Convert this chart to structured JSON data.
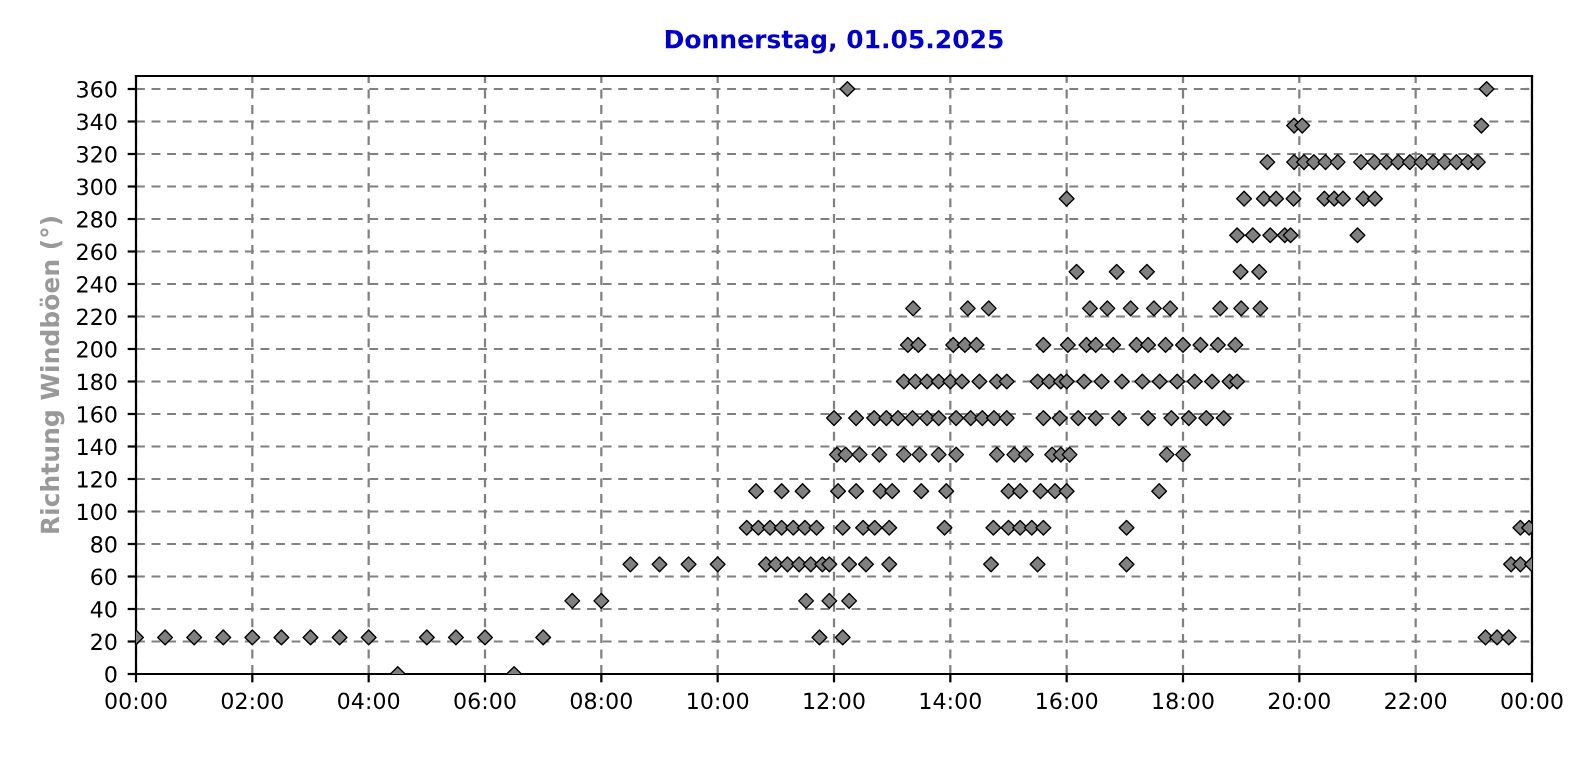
{
  "chart_data": {
    "type": "scatter",
    "title": "Donnerstag, 01.05.2025",
    "ylabel": "Richtung Windböen (°)",
    "xlim": [
      0,
      24
    ],
    "ylim": [
      0,
      368
    ],
    "xticks": [
      {
        "value": 0,
        "label": "00:00"
      },
      {
        "value": 2,
        "label": "02:00"
      },
      {
        "value": 4,
        "label": "04:00"
      },
      {
        "value": 6,
        "label": "06:00"
      },
      {
        "value": 8,
        "label": "08:00"
      },
      {
        "value": 10,
        "label": "10:00"
      },
      {
        "value": 12,
        "label": "12:00"
      },
      {
        "value": 14,
        "label": "14:00"
      },
      {
        "value": 16,
        "label": "16:00"
      },
      {
        "value": 18,
        "label": "18:00"
      },
      {
        "value": 20,
        "label": "20:00"
      },
      {
        "value": 22,
        "label": "22:00"
      },
      {
        "value": 24,
        "label": "00:00"
      }
    ],
    "yticks": [
      0,
      20,
      40,
      60,
      80,
      100,
      120,
      140,
      160,
      180,
      200,
      220,
      240,
      260,
      280,
      300,
      320,
      340,
      360
    ],
    "grid": true,
    "marker": "diamond",
    "series": [
      {
        "color": "#808080",
        "x": [
          0,
          0.5,
          1,
          1.5,
          2,
          2.5,
          3,
          3.5,
          4,
          4.5,
          5,
          5.5,
          6,
          6.5,
          7,
          7.5,
          8,
          8.5,
          9,
          9.5,
          10,
          10.5,
          10.66,
          10.7,
          10.83,
          10.9,
          11.0,
          11.1,
          11.1,
          11.2,
          11.3,
          11.4,
          11.46,
          11.5,
          11.52,
          11.6,
          11.7,
          11.75,
          11.8,
          11.92,
          11.92,
          12.0,
          12.05,
          12.07,
          12.15,
          12.15,
          12.2,
          12.23,
          12.26,
          12.26,
          12.38,
          12.38,
          12.44,
          12.5,
          12.55,
          12.69,
          12.7,
          12.78,
          12.8,
          12.9,
          12.95,
          12.95,
          13.0,
          13.1,
          13.2,
          13.2,
          13.27,
          13.36,
          13.45,
          13.4,
          13.35,
          13.5,
          13.47,
          13.6,
          13.6,
          13.8,
          13.8,
          13.8,
          13.9,
          13.93,
          14.0,
          14.05,
          14.1,
          14.1,
          14.2,
          14.25,
          14.3,
          14.35,
          14.45,
          14.5,
          14.55,
          14.66,
          14.7,
          14.74,
          14.75,
          14.8,
          14.8,
          14.97,
          14.97,
          15.0,
          15.0,
          15.1,
          15.2,
          15.2,
          15.3,
          15.4,
          15.5,
          15.5,
          15.55,
          15.6,
          15.6,
          15.6,
          15.7,
          15.75,
          15.8,
          15.88,
          15.9,
          15.9,
          16.0,
          16.0,
          16.02,
          16.0,
          16.05,
          16.17,
          16.2,
          16.3,
          16.34,
          16.4,
          16.5,
          16.5,
          16.6,
          16.7,
          16.8,
          16.86,
          16.9,
          16.95,
          17.03,
          17.03,
          17.1,
          17.2,
          17.3,
          17.38,
          17.4,
          17.4,
          17.5,
          17.59,
          17.6,
          17.7,
          17.72,
          17.78,
          17.8,
          17.9,
          18.0,
          18.0,
          18.1,
          18.2,
          18.3,
          18.4,
          18.5,
          18.6,
          18.64,
          18.7,
          18.8,
          18.9,
          18.93,
          18.93,
          18.99,
          19.05,
          19.0,
          19.2,
          19.31,
          19.33,
          19.39,
          19.45,
          19.5,
          19.6,
          19.75,
          19.85,
          19.9,
          19.91,
          19.91,
          20.05,
          20.08,
          20.25,
          20.43,
          20.45,
          20.6,
          20.66,
          20.75,
          21.0,
          21.06,
          21.1,
          21.3,
          21.29,
          21.5,
          21.7,
          21.9,
          22.1,
          22.3,
          22.5,
          22.7,
          22.9,
          23.07,
          23.13,
          23.22,
          23.2,
          23.4,
          23.6,
          23.64,
          23.8,
          23.8,
          23.95,
          24.0
        ],
        "values": [
          22.5,
          22.5,
          22.5,
          22.5,
          22.5,
          22.5,
          22.5,
          22.5,
          22.5,
          0,
          22.5,
          22.5,
          22.5,
          0,
          22.5,
          45,
          45,
          67.5,
          67.5,
          67.5,
          67.5,
          90,
          112.5,
          90,
          67.5,
          90,
          67.5,
          112.5,
          90,
          67.5,
          90,
          67.5,
          112.5,
          90,
          45,
          67.5,
          90,
          22.5,
          67.5,
          67.5,
          45,
          157.5,
          135,
          112.5,
          90,
          22.5,
          135,
          360,
          67.5,
          45,
          157.5,
          112.5,
          135,
          90,
          67.5,
          157.5,
          90,
          135,
          112.5,
          157.5,
          90,
          67.5,
          112.5,
          157.5,
          135,
          180,
          202.5,
          225,
          202.5,
          180,
          157.5,
          112.5,
          135,
          180,
          157.5,
          135,
          180,
          157.5,
          90,
          112.5,
          180,
          202.5,
          135,
          157.5,
          180,
          202.5,
          225,
          157.5,
          202.5,
          180,
          157.5,
          225,
          67.5,
          90,
          157.5,
          135,
          180,
          157.5,
          180,
          112.5,
          90,
          135,
          90,
          112.5,
          135,
          90,
          67.5,
          180,
          112.5,
          202.5,
          157.5,
          90,
          180,
          135,
          112.5,
          157.5,
          135,
          180,
          112.5,
          292.5,
          202.5,
          180,
          135,
          247.5,
          157.5,
          180,
          202.5,
          225,
          202.5,
          157.5,
          180,
          225,
          202.5,
          247.5,
          157.5,
          180,
          90,
          67.5,
          225,
          202.5,
          180,
          247.5,
          202.5,
          157.5,
          225,
          112.5,
          180,
          202.5,
          135,
          225,
          157.5,
          180,
          135,
          202.5,
          157.5,
          180,
          202.5,
          157.5,
          180,
          202.5,
          225,
          157.5,
          180,
          202.5,
          180,
          270,
          247.5,
          292.5,
          225,
          270,
          247.5,
          225,
          292.5,
          315,
          270,
          292.5,
          270,
          270,
          292.5,
          315,
          337.5,
          337.5,
          315,
          315,
          292.5,
          315,
          292.5,
          315,
          292.5,
          270,
          315,
          292.5,
          292.5,
          315,
          315,
          315,
          315,
          315,
          315,
          315,
          315,
          315,
          315,
          337.5,
          360,
          22.5,
          22.5,
          22.5,
          67.5,
          67.5,
          90,
          90,
          67.5
        ]
      }
    ]
  }
}
